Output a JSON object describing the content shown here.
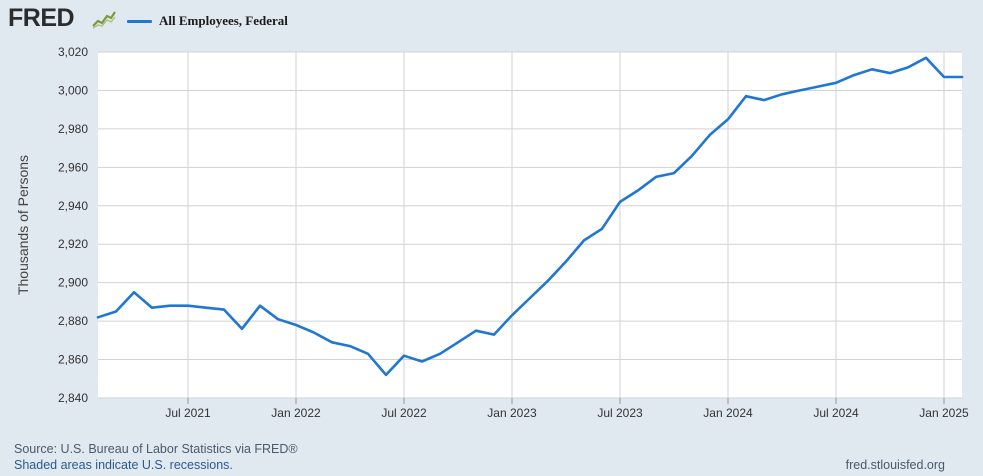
{
  "header": {
    "logo_text": "FRED",
    "logo_icon": "fred-line-graph-icon",
    "legend_label": "All Employees, Federal",
    "legend_color": "#1f77d2"
  },
  "footer": {
    "source": "Source: U.S. Bureau of Labor Statistics via FRED®",
    "recessions": "Shaded areas indicate U.S. recessions.",
    "site": "fred.stlouisfed.org"
  },
  "chart_data": {
    "type": "line",
    "title": "",
    "xlabel": "",
    "ylabel": "Thousands of Persons",
    "ylim": [
      2840,
      3020
    ],
    "yticks": [
      2840,
      2860,
      2880,
      2900,
      2920,
      2940,
      2960,
      2980,
      3000,
      3020
    ],
    "ytick_labels": [
      "2,840",
      "2,860",
      "2,880",
      "2,900",
      "2,920",
      "2,940",
      "2,960",
      "2,980",
      "3,000",
      "3,020"
    ],
    "xlim": [
      "2021-02",
      "2025-02"
    ],
    "xticks": [
      "2021-07",
      "2022-01",
      "2022-07",
      "2023-01",
      "2023-07",
      "2024-01",
      "2024-07",
      "2025-01"
    ],
    "xtick_labels": [
      "Jul 2021",
      "Jan 2022",
      "Jul 2022",
      "Jan 2023",
      "Jul 2023",
      "Jan 2024",
      "Jul 2024",
      "Jan 2025"
    ],
    "grid": true,
    "line_color": "#1f77d2",
    "plot_background": "#ffffff",
    "series": [
      {
        "name": "All Employees, Federal",
        "x": [
          "2021-02",
          "2021-03",
          "2021-04",
          "2021-05",
          "2021-06",
          "2021-07",
          "2021-08",
          "2021-09",
          "2021-10",
          "2021-11",
          "2021-12",
          "2022-01",
          "2022-02",
          "2022-03",
          "2022-04",
          "2022-05",
          "2022-06",
          "2022-07",
          "2022-08",
          "2022-09",
          "2022-10",
          "2022-11",
          "2022-12",
          "2023-01",
          "2023-02",
          "2023-03",
          "2023-04",
          "2023-05",
          "2023-06",
          "2023-07",
          "2023-08",
          "2023-09",
          "2023-10",
          "2023-11",
          "2023-12",
          "2024-01",
          "2024-02",
          "2024-03",
          "2024-04",
          "2024-05",
          "2024-06",
          "2024-07",
          "2024-08",
          "2024-09",
          "2024-10",
          "2024-11",
          "2024-12",
          "2025-01",
          "2025-02"
        ],
        "values": [
          2882,
          2885,
          2895,
          2887,
          2888,
          2888,
          2887,
          2886,
          2876,
          2888,
          2881,
          2878,
          2874,
          2869,
          2867,
          2863,
          2852,
          2862,
          2859,
          2863,
          2869,
          2875,
          2873,
          2883,
          2892,
          2901,
          2911,
          2922,
          2928,
          2942,
          2948,
          2955,
          2957,
          2966,
          2977,
          2985,
          2997,
          2995,
          2998,
          3000,
          3002,
          3004,
          3008,
          3011,
          3009,
          3012,
          3017,
          3007,
          3007
        ]
      }
    ]
  }
}
